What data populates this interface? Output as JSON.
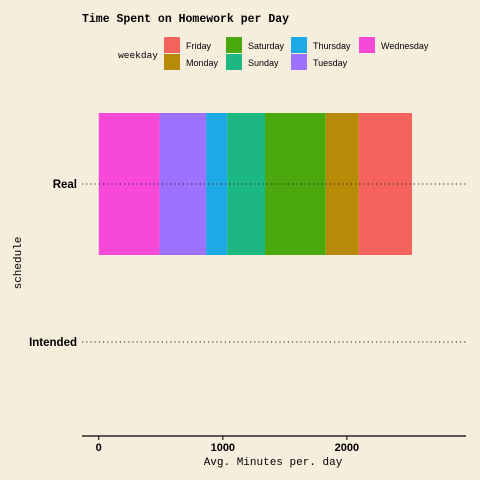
{
  "chart_data": {
    "type": "bar",
    "orientation": "horizontal",
    "stacked": true,
    "title": "Time Spent on Homework per Day",
    "xlabel": "Avg. Minutes per. day",
    "ylabel": "schedule",
    "categories": [
      "Real",
      "Intended"
    ],
    "x_ticks": [
      0,
      1000,
      2000
    ],
    "xlim": [
      -135,
      2960
    ],
    "legend": {
      "title": "weekday",
      "position": "top",
      "entries": [
        "Friday",
        "Monday",
        "Saturday",
        "Sunday",
        "Thursday",
        "Tuesday",
        "Wednesday"
      ]
    },
    "series": [
      {
        "name": "Wednesday",
        "color": "#F748D8",
        "values": [
          490,
          0
        ]
      },
      {
        "name": "Tuesday",
        "color": "#9D72FF",
        "values": [
          375,
          0
        ]
      },
      {
        "name": "Thursday",
        "color": "#1DA9E6",
        "values": [
          170,
          0
        ]
      },
      {
        "name": "Sunday",
        "color": "#1DB882",
        "values": [
          305,
          0
        ]
      },
      {
        "name": "Saturday",
        "color": "#4CA90D",
        "values": [
          490,
          0
        ]
      },
      {
        "name": "Monday",
        "color": "#B78B07",
        "values": [
          265,
          0
        ]
      },
      {
        "name": "Friday",
        "color": "#F4645C",
        "values": [
          430,
          0
        ]
      }
    ],
    "grid": false
  }
}
